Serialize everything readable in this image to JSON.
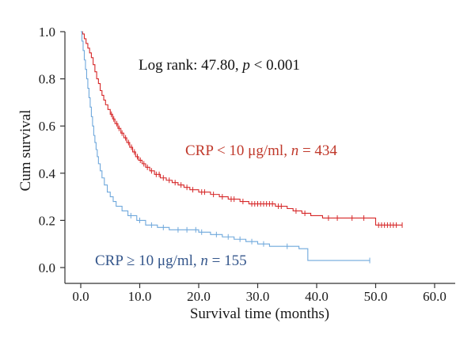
{
  "chart_data": {
    "type": "line",
    "subtype": "kaplan-meier",
    "xlabel": "Survival time (months)",
    "ylabel": "Cum survival",
    "xlim": [
      0,
      60
    ],
    "ylim": [
      0,
      1.0
    ],
    "xticks": [
      "0.0",
      "10.0",
      "20.0",
      "30.0",
      "40.0",
      "50.0",
      "60.0"
    ],
    "yticks": [
      "0.0",
      "0.2",
      "0.4",
      "0.6",
      "0.8",
      "1.0"
    ],
    "grid": false,
    "annotations": {
      "logrank_prefix": "Log rank: 47.80, ",
      "logrank_p": "p",
      "logrank_suffix": " < 0.001",
      "low_prefix": "CRP < 10 μg/ml, ",
      "low_n": "n",
      "low_suffix": " = 434",
      "high_prefix": "CRP ≥ 10 μg/ml, ",
      "high_n": "n",
      "high_suffix": " = 155"
    },
    "series": [
      {
        "color": "#d62728",
        "steps": [
          [
            0,
            1.0
          ],
          [
            0.3,
            0.99
          ],
          [
            0.6,
            0.97
          ],
          [
            0.9,
            0.95
          ],
          [
            1.2,
            0.93
          ],
          [
            1.5,
            0.91
          ],
          [
            1.8,
            0.89
          ],
          [
            2.1,
            0.86
          ],
          [
            2.4,
            0.83
          ],
          [
            2.7,
            0.8
          ],
          [
            3.0,
            0.78
          ],
          [
            3.3,
            0.75
          ],
          [
            3.6,
            0.73
          ],
          [
            3.9,
            0.71
          ],
          [
            4.2,
            0.69
          ],
          [
            4.6,
            0.67
          ],
          [
            5.0,
            0.65
          ],
          [
            5.4,
            0.63
          ],
          [
            5.8,
            0.61
          ],
          [
            6.3,
            0.59
          ],
          [
            6.8,
            0.57
          ],
          [
            7.3,
            0.55
          ],
          [
            7.8,
            0.53
          ],
          [
            8.3,
            0.51
          ],
          [
            8.8,
            0.49
          ],
          [
            9.3,
            0.47
          ],
          [
            9.8,
            0.455
          ],
          [
            10.4,
            0.44
          ],
          [
            11.0,
            0.425
          ],
          [
            11.7,
            0.41
          ],
          [
            12.5,
            0.395
          ],
          [
            13.5,
            0.38
          ],
          [
            14.5,
            0.37
          ],
          [
            15.5,
            0.36
          ],
          [
            16.5,
            0.35
          ],
          [
            17.5,
            0.34
          ],
          [
            18.5,
            0.33
          ],
          [
            20.0,
            0.32
          ],
          [
            22.0,
            0.31
          ],
          [
            23.5,
            0.3
          ],
          [
            25.0,
            0.29
          ],
          [
            27.0,
            0.28
          ],
          [
            28.5,
            0.27
          ],
          [
            33.0,
            0.26
          ],
          [
            35.0,
            0.25
          ],
          [
            36.0,
            0.24
          ],
          [
            37.5,
            0.23
          ],
          [
            39.0,
            0.22
          ],
          [
            41.0,
            0.21
          ],
          [
            50.0,
            0.18
          ],
          [
            54.5,
            0.18
          ]
        ],
        "censors": [
          5.2,
          5.6,
          6.1,
          6.5,
          7.0,
          7.6,
          8.1,
          8.6,
          9.1,
          9.6,
          10.1,
          10.7,
          11.3,
          12.0,
          12.8,
          13.3,
          14.0,
          15.0,
          16.0,
          17.0,
          18.0,
          19.0,
          20.5,
          21.0,
          22.5,
          24.0,
          25.5,
          26.0,
          27.5,
          29.0,
          29.5,
          30.0,
          30.5,
          31.0,
          31.5,
          32.0,
          32.5,
          33.5,
          34.0,
          36.5,
          38.0,
          42.0,
          43.5,
          46.0,
          48.0,
          50.5,
          51.0,
          51.5,
          52.0,
          52.5,
          53.0,
          53.5,
          54.5
        ]
      },
      {
        "color": "#6fa8dc",
        "steps": [
          [
            0,
            1.0
          ],
          [
            0.2,
            0.96
          ],
          [
            0.4,
            0.92
          ],
          [
            0.6,
            0.88
          ],
          [
            0.8,
            0.84
          ],
          [
            1.0,
            0.8
          ],
          [
            1.2,
            0.76
          ],
          [
            1.4,
            0.72
          ],
          [
            1.6,
            0.68
          ],
          [
            1.8,
            0.64
          ],
          [
            2.0,
            0.6
          ],
          [
            2.2,
            0.56
          ],
          [
            2.4,
            0.53
          ],
          [
            2.6,
            0.5
          ],
          [
            2.8,
            0.47
          ],
          [
            3.0,
            0.44
          ],
          [
            3.3,
            0.41
          ],
          [
            3.6,
            0.38
          ],
          [
            4.0,
            0.35
          ],
          [
            4.5,
            0.32
          ],
          [
            5.0,
            0.3
          ],
          [
            5.5,
            0.28
          ],
          [
            6.0,
            0.26
          ],
          [
            7.0,
            0.24
          ],
          [
            8.0,
            0.22
          ],
          [
            9.5,
            0.2
          ],
          [
            11.0,
            0.18
          ],
          [
            13.0,
            0.17
          ],
          [
            15.0,
            0.16
          ],
          [
            20.0,
            0.15
          ],
          [
            22.0,
            0.14
          ],
          [
            24.0,
            0.13
          ],
          [
            26.0,
            0.12
          ],
          [
            28.0,
            0.11
          ],
          [
            30.0,
            0.1
          ],
          [
            32.0,
            0.09
          ],
          [
            37.0,
            0.08
          ],
          [
            38.5,
            0.03
          ],
          [
            49.0,
            0.03
          ]
        ],
        "censors": [
          8.5,
          10.0,
          12.0,
          14.0,
          16.5,
          18.0,
          19.5,
          20.5,
          23.0,
          25.0,
          27.0,
          29.0,
          31.0,
          35.0,
          49.0
        ]
      }
    ]
  }
}
